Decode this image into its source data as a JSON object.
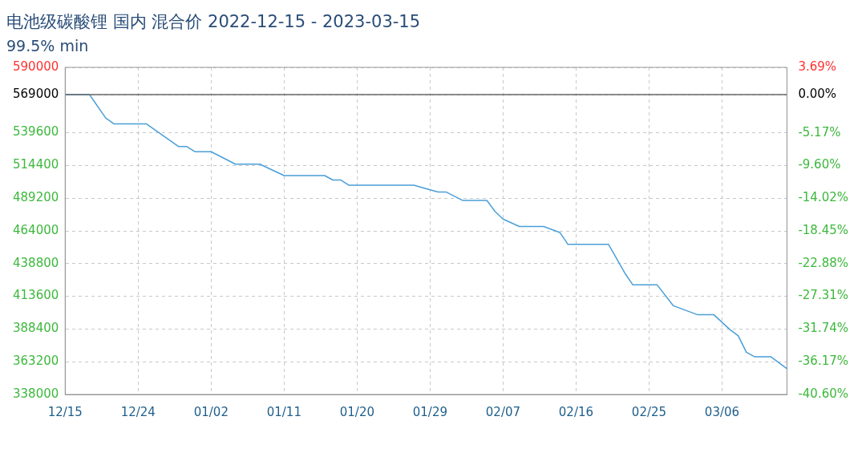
{
  "chart_data": {
    "type": "line",
    "title": "电池级碳酸锂 国内 混合价 2022-12-15 - 2023-03-15",
    "subtitle": "99.5% min",
    "x": [
      "2022-12-15",
      "2022-12-18",
      "2022-12-20",
      "2022-12-21",
      "2022-12-25",
      "2022-12-29",
      "2022-12-30",
      "2022-12-31",
      "2023-01-02",
      "2023-01-05",
      "2023-01-08",
      "2023-01-11",
      "2023-01-16",
      "2023-01-17",
      "2023-01-18",
      "2023-01-19",
      "2023-01-27",
      "2023-01-29",
      "2023-01-30",
      "2023-01-31",
      "2023-02-02",
      "2023-02-05",
      "2023-02-06",
      "2023-02-07",
      "2023-02-09",
      "2023-02-12",
      "2023-02-14",
      "2023-02-15",
      "2023-02-20",
      "2023-02-22",
      "2023-02-23",
      "2023-02-26",
      "2023-02-28",
      "2023-03-03",
      "2023-03-05",
      "2023-03-07",
      "2023-03-08",
      "2023-03-09",
      "2023-03-10",
      "2023-03-12",
      "2023-03-14"
    ],
    "series": [
      {
        "color": "#4a9fd8",
        "values": [
          569000,
          569000,
          551000,
          546500,
          546500,
          529000,
          529000,
          525000,
          525000,
          515400,
          515400,
          506600,
          506600,
          503200,
          503200,
          499200,
          499200,
          495600,
          493900,
          493900,
          487500,
          487500,
          479000,
          473100,
          467400,
          467400,
          462800,
          453600,
          453600,
          431600,
          422400,
          422400,
          406300,
          399400,
          399400,
          387800,
          383200,
          370500,
          367100,
          367100,
          357900
        ]
      }
    ],
    "xlim": [
      "2022-12-15",
      "2023-03-14"
    ],
    "xticks": [
      {
        "value": "2022-12-15",
        "label": "12/15"
      },
      {
        "value": "2022-12-24",
        "label": "12/24"
      },
      {
        "value": "2023-01-02",
        "label": "01/02"
      },
      {
        "value": "2023-01-11",
        "label": "01/11"
      },
      {
        "value": "2023-01-20",
        "label": "01/20"
      },
      {
        "value": "2023-01-29",
        "label": "01/29"
      },
      {
        "value": "2023-02-07",
        "label": "02/07"
      },
      {
        "value": "2023-02-16",
        "label": "02/16"
      },
      {
        "value": "2023-02-25",
        "label": "02/25"
      },
      {
        "value": "2023-03-06",
        "label": "03/06"
      }
    ],
    "ylim": [
      338000,
      590000
    ],
    "yticks": [
      338000,
      363200,
      388400,
      413600,
      438800,
      464000,
      489200,
      514400,
      539600,
      569000,
      590000
    ],
    "y2lim": [
      -40.6,
      3.69
    ],
    "y2ticks": [
      {
        "value": -40.6,
        "label": "-40.60%"
      },
      {
        "value": -36.17,
        "label": "-36.17%"
      },
      {
        "value": -31.74,
        "label": "-31.74%"
      },
      {
        "value": -27.31,
        "label": "-27.31%"
      },
      {
        "value": -22.88,
        "label": "-22.88%"
      },
      {
        "value": -18.45,
        "label": "-18.45%"
      },
      {
        "value": -14.02,
        "label": "-14.02%"
      },
      {
        "value": -9.6,
        "label": "-9.60%"
      },
      {
        "value": -5.17,
        "label": "-5.17%"
      },
      {
        "value": 0,
        "label": "0.00%"
      },
      {
        "value": 3.69,
        "label": "3.69%"
      }
    ],
    "ref_lines": [
      {
        "axis": "y",
        "value": 569000,
        "color": "#666666"
      }
    ],
    "grid": true,
    "legend": false
  }
}
